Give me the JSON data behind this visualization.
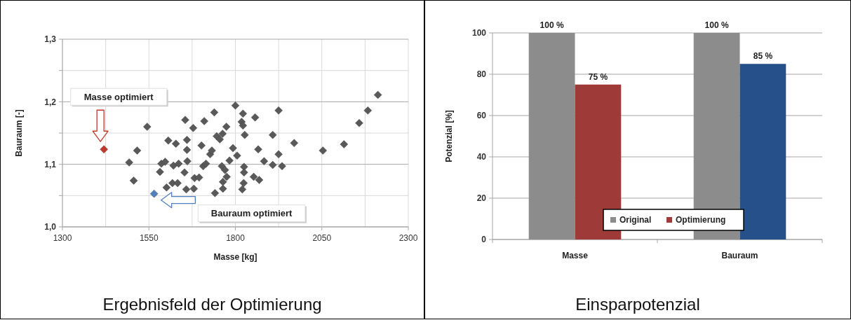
{
  "chart_data": [
    {
      "type": "scatter",
      "title": "Ergebnisfeld der Optimierung",
      "xlabel": "Masse [kg]",
      "ylabel": "Bauraum [-]",
      "marker": "diamond",
      "grid": true,
      "xlim": [
        1300,
        2300
      ],
      "xticks": [
        1300,
        {
          "value": 1425,
          "label": null
        },
        1550,
        {
          "value": 1675,
          "label": null
        },
        1800,
        {
          "value": 1925,
          "label": null
        },
        2050,
        {
          "value": 2175,
          "label": null
        },
        2300
      ],
      "ylim": [
        1.0,
        1.3
      ],
      "yticks": [
        {
          "value": 1.0,
          "label": "1,0"
        },
        {
          "value": 1.05,
          "label": null
        },
        {
          "value": 1.1,
          "label": "1,1"
        },
        {
          "value": 1.15,
          "label": null
        },
        {
          "value": 1.2,
          "label": "1,2"
        },
        {
          "value": 1.25,
          "label": null
        },
        {
          "value": 1.3,
          "label": "1,3"
        }
      ],
      "series": [
        {
          "color": "#595959",
          "x": [
            1493,
            1506,
            1516,
            1545,
            1582,
            1586,
            1597,
            1601,
            1606,
            1618,
            1621,
            1628,
            1633,
            1636,
            1653,
            1655,
            1658,
            1660,
            1660,
            1661,
            1678,
            1680,
            1682,
            1695,
            1702,
            1707,
            1710,
            1715,
            1727,
            1732,
            1739,
            1741,
            1746,
            1755,
            1761,
            1763,
            1770,
            1775,
            1764,
            1764,
            1774,
            1783,
            1793,
            1800,
            1805,
            1822,
            1818,
            1822,
            1827,
            1825,
            1825,
            1824,
            1820,
            1853,
            1869,
            1857,
            1866,
            1883,
            1908,
            1908,
            1925,
            1925,
            1935,
            1970,
            2053,
            2114,
            2158,
            2183,
            2212
          ],
          "values": [
            1.103,
            1.074,
            1.122,
            1.16,
            1.088,
            1.101,
            1.104,
            1.063,
            1.138,
            1.07,
            1.098,
            1.133,
            1.07,
            1.101,
            1.087,
            1.171,
            1.06,
            1.123,
            1.139,
            1.105,
            1.158,
            1.061,
            1.078,
            1.079,
            1.13,
            1.097,
            1.169,
            1.101,
            1.116,
            1.122,
            1.183,
            1.054,
            1.145,
            1.14,
            1.097,
            1.149,
            1.091,
            1.08,
            1.072,
            1.061,
            1.16,
            1.106,
            1.126,
            1.194,
            1.114,
            1.181,
            1.168,
            1.162,
            1.147,
            1.096,
            1.087,
            1.07,
            1.06,
            1.08,
            1.075,
            1.175,
            1.124,
            1.105,
            1.147,
            1.099,
            1.186,
            1.116,
            1.097,
            1.134,
            1.122,
            1.132,
            1.166,
            1.186,
            1.211
          ]
        },
        {
          "color": "#c0392b",
          "x": [
            1420
          ],
          "values": [
            1.124
          ]
        },
        {
          "color": "#4f81bd",
          "x": [
            1565
          ],
          "values": [
            1.053
          ]
        }
      ],
      "annotations": [
        "Masse optimiert",
        "Bauraum optimiert"
      ]
    },
    {
      "type": "bar",
      "title": "Einsparpotenzial",
      "ylabel": "Potenzial [%]",
      "categories": [
        "Masse",
        "Bauraum"
      ],
      "grid": "y",
      "legend": "bottom",
      "ylim": [
        0,
        100
      ],
      "yticks": [
        0,
        20,
        40,
        60,
        80,
        100
      ],
      "series": [
        {
          "name": "Original",
          "color": "#8c8c8c",
          "values": [
            100,
            100
          ],
          "value_labels": [
            "100 %",
            "100 %"
          ]
        },
        {
          "name": "Optimierung",
          "color": "#9e3b38",
          "colors": [
            "#9e3b38",
            "#26508a"
          ],
          "values": [
            75,
            85
          ],
          "value_labels": [
            "75 %",
            "85 %"
          ]
        }
      ]
    }
  ]
}
